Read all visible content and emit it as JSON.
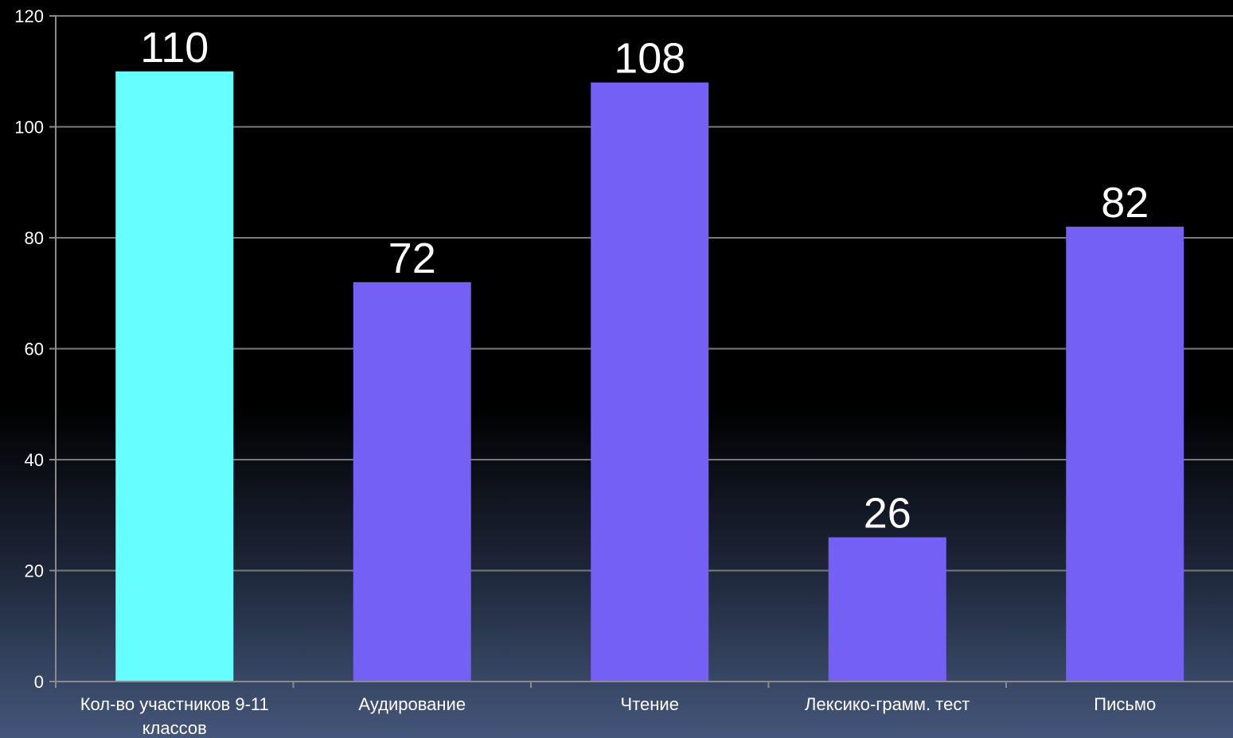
{
  "chart_data": {
    "type": "bar",
    "categories": [
      [
        "Кол-во участников  9-11",
        "классов"
      ],
      [
        "Аудирование"
      ],
      [
        "Чтение"
      ],
      [
        "Лексико-грамм. тест"
      ],
      [
        "Письмо"
      ]
    ],
    "values": [
      110,
      72,
      108,
      26,
      82
    ],
    "bar_colors": [
      "#66ffff",
      "#7560f5",
      "#7560f5",
      "#7560f5",
      "#7560f5"
    ],
    "ylim": [
      0,
      120
    ],
    "y_ticks": [
      0,
      20,
      40,
      60,
      80,
      100,
      120
    ],
    "grid": true,
    "title": "",
    "xlabel": "",
    "ylabel": ""
  }
}
